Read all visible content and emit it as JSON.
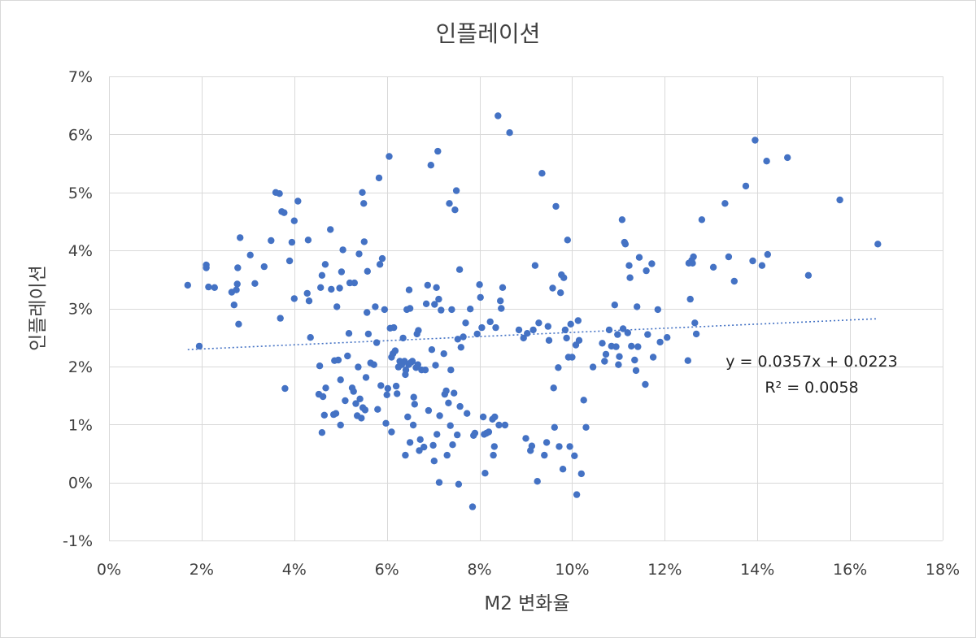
{
  "chart_data": {
    "type": "scatter",
    "title": "인플레이션",
    "xlabel": "M2 변화율",
    "ylabel": "인플레이션",
    "xlim": [
      0,
      0.18
    ],
    "ylim": [
      -0.01,
      0.07
    ],
    "x_ticks": [
      0,
      0.02,
      0.04,
      0.06,
      0.08,
      0.1,
      0.12,
      0.14,
      0.16,
      0.18
    ],
    "x_tick_labels": [
      "0%",
      "2%",
      "4%",
      "6%",
      "8%",
      "10%",
      "12%",
      "14%",
      "16%",
      "18%"
    ],
    "y_ticks": [
      -0.01,
      0,
      0.01,
      0.02,
      0.03,
      0.04,
      0.05,
      0.06,
      0.07
    ],
    "y_tick_labels": [
      "-1%",
      "0%",
      "1%",
      "2%",
      "3%",
      "4%",
      "5%",
      "6%",
      "7%"
    ],
    "grid": true,
    "marker_color": "#4472c4",
    "trendline": {
      "slope": 0.0357,
      "intercept": 0.0223,
      "x_range": [
        0.017,
        0.166
      ],
      "style": "dotted",
      "color": "#4472c4",
      "equation_label": "y = 0.0357x + 0.0223",
      "r2_label": "R² = 0.0058"
    },
    "points": [
      [
        0.017,
        0.034
      ],
      [
        0.0195,
        0.0235
      ],
      [
        0.021,
        0.0375
      ],
      [
        0.021,
        0.037
      ],
      [
        0.0215,
        0.0337
      ],
      [
        0.0228,
        0.0336
      ],
      [
        0.0265,
        0.0328
      ],
      [
        0.027,
        0.0306
      ],
      [
        0.0275,
        0.0332
      ],
      [
        0.0277,
        0.0342
      ],
      [
        0.0278,
        0.037
      ],
      [
        0.028,
        0.0273
      ],
      [
        0.0283,
        0.0422
      ],
      [
        0.0305,
        0.0392
      ],
      [
        0.0315,
        0.0343
      ],
      [
        0.0335,
        0.0372
      ],
      [
        0.035,
        0.0417
      ],
      [
        0.036,
        0.05
      ],
      [
        0.0368,
        0.0498
      ],
      [
        0.037,
        0.0283
      ],
      [
        0.0373,
        0.0467
      ],
      [
        0.0378,
        0.0465
      ],
      [
        0.038,
        0.0162
      ],
      [
        0.039,
        0.0382
      ],
      [
        0.0395,
        0.0414
      ],
      [
        0.04,
        0.0451
      ],
      [
        0.0408,
        0.0485
      ],
      [
        0.04,
        0.0317
      ],
      [
        0.0428,
        0.0326
      ],
      [
        0.043,
        0.0418
      ],
      [
        0.0432,
        0.0313
      ],
      [
        0.0435,
        0.025
      ],
      [
        0.0453,
        0.0152
      ],
      [
        0.0455,
        0.0201
      ],
      [
        0.0457,
        0.0336
      ],
      [
        0.046,
        0.0086
      ],
      [
        0.046,
        0.0357
      ],
      [
        0.0462,
        0.0148
      ],
      [
        0.0465,
        0.0116
      ],
      [
        0.0467,
        0.0376
      ],
      [
        0.0468,
        0.0163
      ],
      [
        0.0478,
        0.0436
      ],
      [
        0.048,
        0.0333
      ],
      [
        0.0485,
        0.0117
      ],
      [
        0.0487,
        0.021
      ],
      [
        0.049,
        0.0119
      ],
      [
        0.0492,
        0.0303
      ],
      [
        0.0495,
        0.0211
      ],
      [
        0.0498,
        0.0335
      ],
      [
        0.05,
        0.0099
      ],
      [
        0.05,
        0.0177
      ],
      [
        0.0502,
        0.0363
      ],
      [
        0.0505,
        0.0401
      ],
      [
        0.051,
        0.0141
      ],
      [
        0.0515,
        0.0218
      ],
      [
        0.0518,
        0.0257
      ],
      [
        0.052,
        0.0344
      ],
      [
        0.0525,
        0.0163
      ],
      [
        0.0528,
        0.0157
      ],
      [
        0.053,
        0.0344
      ],
      [
        0.0533,
        0.0136
      ],
      [
        0.0536,
        0.0115
      ],
      [
        0.0538,
        0.0199
      ],
      [
        0.054,
        0.0394
      ],
      [
        0.0542,
        0.0144
      ],
      [
        0.0545,
        0.0111
      ],
      [
        0.0547,
        0.05
      ],
      [
        0.0548,
        0.0129
      ],
      [
        0.055,
        0.0481
      ],
      [
        0.0551,
        0.0415
      ],
      [
        0.0553,
        0.0125
      ],
      [
        0.0555,
        0.0181
      ],
      [
        0.0557,
        0.0293
      ],
      [
        0.0558,
        0.0364
      ],
      [
        0.056,
        0.0256
      ],
      [
        0.0565,
        0.0206
      ],
      [
        0.0572,
        0.0203
      ],
      [
        0.0575,
        0.0303
      ],
      [
        0.0578,
        0.0241
      ],
      [
        0.058,
        0.0126
      ],
      [
        0.0583,
        0.0525
      ],
      [
        0.0585,
        0.0376
      ],
      [
        0.0587,
        0.0167
      ],
      [
        0.059,
        0.0386
      ],
      [
        0.0595,
        0.0298
      ],
      [
        0.0598,
        0.0102
      ],
      [
        0.06,
        0.0151
      ],
      [
        0.0602,
        0.0162
      ],
      [
        0.0605,
        0.0562
      ],
      [
        0.0607,
        0.0266
      ],
      [
        0.061,
        0.0087
      ],
      [
        0.061,
        0.0216
      ],
      [
        0.0613,
        0.0222
      ],
      [
        0.0615,
        0.0267
      ],
      [
        0.0618,
        0.0227
      ],
      [
        0.062,
        0.0166
      ],
      [
        0.0622,
        0.0153
      ],
      [
        0.0625,
        0.0199
      ],
      [
        0.0628,
        0.0209
      ],
      [
        0.0632,
        0.0203
      ],
      [
        0.0635,
        0.0249
      ],
      [
        0.0638,
        0.0209
      ],
      [
        0.064,
        0.0186
      ],
      [
        0.064,
        0.0047
      ],
      [
        0.0641,
        0.0194
      ],
      [
        0.0643,
        0.0298
      ],
      [
        0.0645,
        0.0113
      ],
      [
        0.0647,
        0.0203
      ],
      [
        0.0648,
        0.0332
      ],
      [
        0.065,
        0.0069
      ],
      [
        0.065,
        0.03
      ],
      [
        0.0652,
        0.0207
      ],
      [
        0.0655,
        0.0209
      ],
      [
        0.0657,
        0.0099
      ],
      [
        0.0658,
        0.0147
      ],
      [
        0.066,
        0.0135
      ],
      [
        0.0663,
        0.0198
      ],
      [
        0.0665,
        0.0256
      ],
      [
        0.0667,
        0.0203
      ],
      [
        0.0668,
        0.0262
      ],
      [
        0.067,
        0.0055
      ],
      [
        0.0672,
        0.0074
      ],
      [
        0.0675,
        0.0194
      ],
      [
        0.068,
        0.0061
      ],
      [
        0.0683,
        0.0194
      ],
      [
        0.0685,
        0.0308
      ],
      [
        0.0688,
        0.034
      ],
      [
        0.069,
        0.0124
      ],
      [
        0.0695,
        0.0547
      ],
      [
        0.0697,
        0.0229
      ],
      [
        0.07,
        0.0064
      ],
      [
        0.0702,
        0.0037
      ],
      [
        0.0703,
        0.0307
      ],
      [
        0.0705,
        0.0202
      ],
      [
        0.0707,
        0.0336
      ],
      [
        0.0708,
        0.0083
      ],
      [
        0.071,
        0.0571
      ],
      [
        0.0712,
        0.0316
      ],
      [
        0.0713,
        0.0
      ],
      [
        0.0714,
        0.0115
      ],
      [
        0.0717,
        0.0297
      ],
      [
        0.0723,
        0.0222
      ],
      [
        0.0725,
        0.0152
      ],
      [
        0.0728,
        0.0158
      ],
      [
        0.073,
        0.0047
      ],
      [
        0.0733,
        0.0137
      ],
      [
        0.0735,
        0.0481
      ],
      [
        0.0737,
        0.0098
      ],
      [
        0.0738,
        0.0194
      ],
      [
        0.074,
        0.0298
      ],
      [
        0.0742,
        0.0065
      ],
      [
        0.0745,
        0.0154
      ],
      [
        0.0747,
        0.047
      ],
      [
        0.075,
        0.0503
      ],
      [
        0.0752,
        0.0082
      ],
      [
        0.0753,
        0.0247
      ],
      [
        0.0755,
        -0.0003
      ],
      [
        0.0757,
        0.0367
      ],
      [
        0.0758,
        0.0131
      ],
      [
        0.076,
        0.0233
      ],
      [
        0.0765,
        0.0251
      ],
      [
        0.077,
        0.0275
      ],
      [
        0.0773,
        0.0119
      ],
      [
        0.078,
        0.0299
      ],
      [
        0.0785,
        -0.0042
      ],
      [
        0.0787,
        0.0081
      ],
      [
        0.079,
        0.0085
      ],
      [
        0.0795,
        0.0256
      ],
      [
        0.08,
        0.0341
      ],
      [
        0.0802,
        0.0319
      ],
      [
        0.0805,
        0.0267
      ],
      [
        0.0808,
        0.0113
      ],
      [
        0.081,
        0.0083
      ],
      [
        0.0812,
        0.0016
      ],
      [
        0.0815,
        0.0085
      ],
      [
        0.082,
        0.0087
      ],
      [
        0.0823,
        0.0277
      ],
      [
        0.0828,
        0.0109
      ],
      [
        0.083,
        0.0047
      ],
      [
        0.0832,
        0.0062
      ],
      [
        0.0833,
        0.0113
      ],
      [
        0.0835,
        0.0267
      ],
      [
        0.084,
        0.0632
      ],
      [
        0.0842,
        0.0099
      ],
      [
        0.0845,
        0.0313
      ],
      [
        0.0847,
        0.03
      ],
      [
        0.085,
        0.0336
      ],
      [
        0.0855,
        0.0099
      ],
      [
        0.0865,
        0.0603
      ],
      [
        0.0885,
        0.0263
      ],
      [
        0.0895,
        0.0249
      ],
      [
        0.09,
        0.0076
      ],
      [
        0.0903,
        0.0257
      ],
      [
        0.091,
        0.0055
      ],
      [
        0.0913,
        0.0063
      ],
      [
        0.0916,
        0.0263
      ],
      [
        0.092,
        0.0374
      ],
      [
        0.0925,
        0.0002
      ],
      [
        0.0928,
        0.0275
      ],
      [
        0.0935,
        0.0533
      ],
      [
        0.094,
        0.0047
      ],
      [
        0.0945,
        0.0069
      ],
      [
        0.0948,
        0.0269
      ],
      [
        0.095,
        0.0245
      ],
      [
        0.0958,
        0.0335
      ],
      [
        0.096,
        0.0163
      ],
      [
        0.0962,
        0.0095
      ],
      [
        0.0965,
        0.0476
      ],
      [
        0.097,
        0.0198
      ],
      [
        0.0972,
        0.0062
      ],
      [
        0.0975,
        0.0327
      ],
      [
        0.0977,
        0.0358
      ],
      [
        0.098,
        0.0023
      ],
      [
        0.0982,
        0.0353
      ],
      [
        0.0985,
        0.0263
      ],
      [
        0.0988,
        0.0249
      ],
      [
        0.099,
        0.0418
      ],
      [
        0.0992,
        0.0216
      ],
      [
        0.0995,
        0.0062
      ],
      [
        0.0997,
        0.0273
      ],
      [
        0.1,
        0.0216
      ],
      [
        0.1005,
        0.0046
      ],
      [
        0.1008,
        0.0237
      ],
      [
        0.101,
        -0.0021
      ],
      [
        0.1013,
        0.0279
      ],
      [
        0.1015,
        0.0245
      ],
      [
        0.102,
        0.0015
      ],
      [
        0.1025,
        0.0142
      ],
      [
        0.103,
        0.0095
      ],
      [
        0.1045,
        0.0199
      ],
      [
        0.1065,
        0.024
      ],
      [
        0.107,
        0.0209
      ],
      [
        0.1073,
        0.0221
      ],
      [
        0.108,
        0.0263
      ],
      [
        0.1085,
        0.0235
      ],
      [
        0.1092,
        0.0306
      ],
      [
        0.1095,
        0.0234
      ],
      [
        0.1098,
        0.0255
      ],
      [
        0.11,
        0.0203
      ],
      [
        0.1102,
        0.0217
      ],
      [
        0.1108,
        0.0453
      ],
      [
        0.111,
        0.0265
      ],
      [
        0.1113,
        0.0414
      ],
      [
        0.1115,
        0.0411
      ],
      [
        0.112,
        0.0258
      ],
      [
        0.1123,
        0.0374
      ],
      [
        0.1125,
        0.0353
      ],
      [
        0.1128,
        0.0235
      ],
      [
        0.1135,
        0.0211
      ],
      [
        0.1138,
        0.0193
      ],
      [
        0.114,
        0.0303
      ],
      [
        0.1142,
        0.0234
      ],
      [
        0.1145,
        0.0388
      ],
      [
        0.1158,
        0.0169
      ],
      [
        0.116,
        0.0365
      ],
      [
        0.1163,
        0.0255
      ],
      [
        0.1172,
        0.0377
      ],
      [
        0.1175,
        0.0216
      ],
      [
        0.1185,
        0.0298
      ],
      [
        0.119,
        0.0242
      ],
      [
        0.1205,
        0.025
      ],
      [
        0.125,
        0.021
      ],
      [
        0.1252,
        0.0378
      ],
      [
        0.1255,
        0.0316
      ],
      [
        0.1258,
        0.0383
      ],
      [
        0.126,
        0.0378
      ],
      [
        0.1262,
        0.0389
      ],
      [
        0.1265,
        0.0275
      ],
      [
        0.1268,
        0.0256
      ],
      [
        0.128,
        0.0453
      ],
      [
        0.1305,
        0.0371
      ],
      [
        0.133,
        0.0481
      ],
      [
        0.1338,
        0.0389
      ],
      [
        0.135,
        0.0347
      ],
      [
        0.1375,
        0.0511
      ],
      [
        0.139,
        0.0382
      ],
      [
        0.1395,
        0.059
      ],
      [
        0.141,
        0.0374
      ],
      [
        0.142,
        0.0554
      ],
      [
        0.1422,
        0.0393
      ],
      [
        0.1465,
        0.056
      ],
      [
        0.151,
        0.0357
      ],
      [
        0.1578,
        0.0487
      ],
      [
        0.166,
        0.0411
      ]
    ]
  }
}
